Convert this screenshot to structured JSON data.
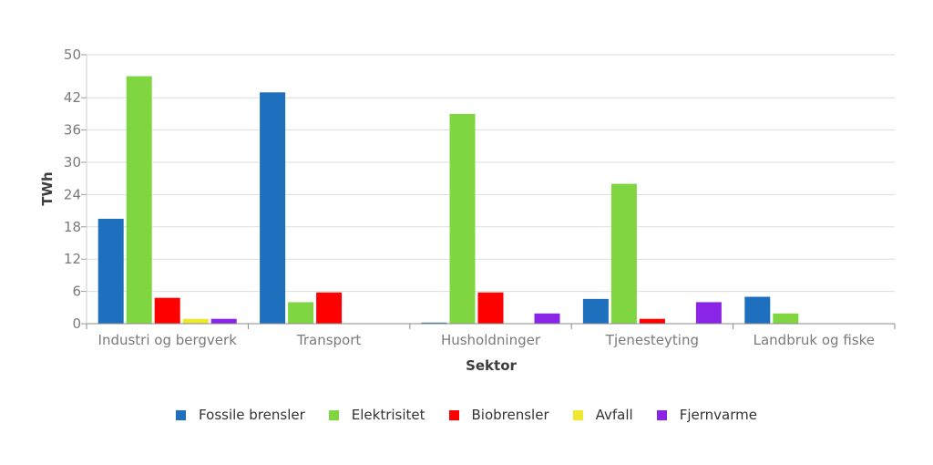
{
  "chart_data": {
    "type": "bar",
    "xlabel": "Sektor",
    "ylabel": "TWh",
    "ylim": [
      0,
      50
    ],
    "yticks": [
      0,
      6,
      12,
      18,
      24,
      30,
      36,
      42,
      50
    ],
    "grid": true,
    "legend_position": "bottom",
    "categories": [
      "Industri og bergverk",
      "Transport",
      "Husholdninger",
      "Tjenesteyting",
      "Landbruk og fiske"
    ],
    "series": [
      {
        "name": "Fossile brensler",
        "color": "#1f6fbf",
        "values": [
          19.5,
          43,
          0.2,
          4.6,
          5
        ]
      },
      {
        "name": "Elektrisitet",
        "color": "#80d641",
        "values": [
          46,
          4,
          39,
          26,
          1.9
        ]
      },
      {
        "name": "Biobrensler",
        "color": "#ff0000",
        "values": [
          4.8,
          5.8,
          5.8,
          0.9,
          0
        ]
      },
      {
        "name": "Avfall",
        "color": "#f0e830",
        "values": [
          0.9,
          0,
          0,
          0,
          0
        ]
      },
      {
        "name": "Fjernvarme",
        "color": "#8a24e6",
        "values": [
          0.9,
          0,
          1.9,
          4,
          0
        ]
      }
    ]
  }
}
